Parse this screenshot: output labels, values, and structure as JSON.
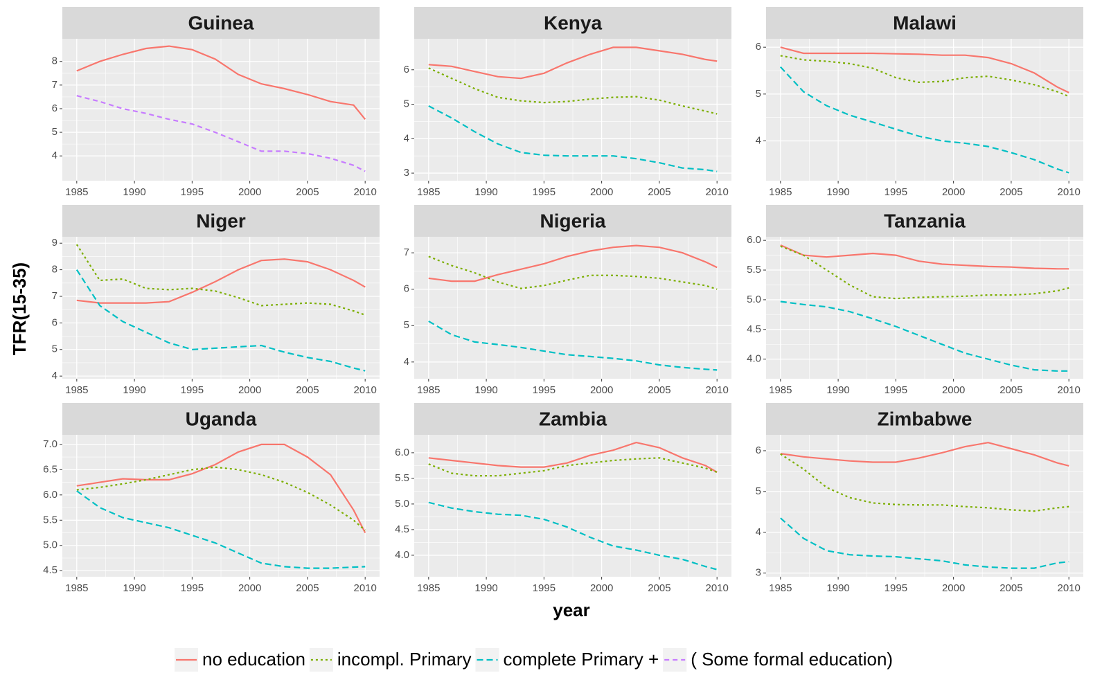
{
  "y_label": "TFR(15-35)",
  "x_label": "year",
  "chart_data": [
    {
      "type": "line",
      "title": "Guinea",
      "x": [
        1985,
        1987,
        1989,
        1991,
        1993,
        1995,
        1997,
        1999,
        2001,
        2003,
        2005,
        2007,
        2009,
        2010
      ],
      "series": [
        {
          "name": "no education",
          "color": "#F8766D",
          "linestyle": "solid",
          "values": [
            7.6,
            8.0,
            8.3,
            8.55,
            8.65,
            8.5,
            8.1,
            7.45,
            7.05,
            6.85,
            6.6,
            6.3,
            6.15,
            5.55
          ]
        },
        {
          "name": "( Some formal education)",
          "color": "#C77CFF",
          "linestyle": "longdash",
          "values": [
            6.55,
            6.3,
            6.0,
            5.8,
            5.55,
            5.35,
            5.0,
            4.6,
            4.2,
            4.2,
            4.1,
            3.9,
            3.6,
            3.35
          ]
        }
      ],
      "xlim": [
        1983.75,
        2011.25
      ],
      "xticks": [
        1985,
        1990,
        1995,
        2000,
        2005,
        2010
      ],
      "ylim": [
        2.95,
        8.96
      ],
      "yticks": [
        4,
        5,
        6,
        7,
        8
      ],
      "grid": true
    },
    {
      "type": "line",
      "title": "Kenya",
      "x": [
        1985,
        1987,
        1989,
        1991,
        1993,
        1995,
        1997,
        1999,
        2001,
        2003,
        2005,
        2007,
        2009,
        2010
      ],
      "series": [
        {
          "name": "no education",
          "color": "#F8766D",
          "linestyle": "solid",
          "values": [
            6.15,
            6.1,
            5.95,
            5.8,
            5.75,
            5.9,
            6.2,
            6.45,
            6.65,
            6.65,
            6.55,
            6.45,
            6.3,
            6.25
          ]
        },
        {
          "name": "incompl. Primary",
          "color": "#7CAE00",
          "linestyle": "dotted",
          "values": [
            6.05,
            5.75,
            5.45,
            5.2,
            5.1,
            5.05,
            5.08,
            5.15,
            5.2,
            5.22,
            5.12,
            4.95,
            4.8,
            4.72
          ]
        },
        {
          "name": "complete Primary +",
          "color": "#00BFC4",
          "linestyle": "dashed",
          "values": [
            4.95,
            4.6,
            4.2,
            3.85,
            3.6,
            3.52,
            3.5,
            3.5,
            3.5,
            3.42,
            3.3,
            3.15,
            3.1,
            3.05
          ]
        }
      ],
      "xlim": [
        1983.75,
        2011.25
      ],
      "xticks": [
        1985,
        1990,
        1995,
        2000,
        2005,
        2010
      ],
      "ylim": [
        2.78,
        6.9
      ],
      "yticks": [
        3,
        4,
        5,
        6
      ],
      "grid": true
    },
    {
      "type": "line",
      "title": "Malawi",
      "x": [
        1985,
        1987,
        1989,
        1991,
        1993,
        1995,
        1997,
        1999,
        2001,
        2003,
        2005,
        2007,
        2009,
        2010
      ],
      "series": [
        {
          "name": "no education",
          "color": "#F8766D",
          "linestyle": "solid",
          "values": [
            6.0,
            5.87,
            5.87,
            5.87,
            5.87,
            5.86,
            5.85,
            5.83,
            5.83,
            5.78,
            5.65,
            5.45,
            5.15,
            5.03
          ]
        },
        {
          "name": "incompl. Primary",
          "color": "#7CAE00",
          "linestyle": "dotted",
          "values": [
            5.82,
            5.73,
            5.7,
            5.65,
            5.55,
            5.35,
            5.25,
            5.27,
            5.35,
            5.38,
            5.3,
            5.2,
            5.05,
            4.95
          ]
        },
        {
          "name": "complete Primary +",
          "color": "#00BFC4",
          "linestyle": "dashed",
          "values": [
            5.58,
            5.05,
            4.75,
            4.55,
            4.4,
            4.25,
            4.1,
            4.0,
            3.95,
            3.88,
            3.75,
            3.6,
            3.4,
            3.32
          ]
        }
      ],
      "xlim": [
        1983.75,
        2011.25
      ],
      "xticks": [
        1985,
        1990,
        1995,
        2000,
        2005,
        2010
      ],
      "ylim": [
        3.15,
        6.18
      ],
      "yticks": [
        4,
        5,
        6
      ],
      "grid": true
    },
    {
      "type": "line",
      "title": "Niger",
      "x": [
        1985,
        1987,
        1989,
        1991,
        1993,
        1995,
        1997,
        1999,
        2001,
        2003,
        2005,
        2007,
        2009,
        2010
      ],
      "series": [
        {
          "name": "no education",
          "color": "#F8766D",
          "linestyle": "solid",
          "values": [
            6.85,
            6.75,
            6.75,
            6.75,
            6.8,
            7.15,
            7.55,
            8.0,
            8.35,
            8.4,
            8.3,
            8.0,
            7.6,
            7.35
          ]
        },
        {
          "name": "incompl. Primary",
          "color": "#7CAE00",
          "linestyle": "dotted",
          "values": [
            8.95,
            7.6,
            7.65,
            7.3,
            7.25,
            7.3,
            7.2,
            6.95,
            6.65,
            6.7,
            6.75,
            6.7,
            6.45,
            6.3
          ]
        },
        {
          "name": "complete Primary +",
          "color": "#00BFC4",
          "linestyle": "dashed",
          "values": [
            8.0,
            6.65,
            6.05,
            5.65,
            5.25,
            5.0,
            5.05,
            5.1,
            5.15,
            4.9,
            4.7,
            4.55,
            4.3,
            4.2
          ]
        }
      ],
      "xlim": [
        1983.75,
        2011.25
      ],
      "xticks": [
        1985,
        1990,
        1995,
        2000,
        2005,
        2010
      ],
      "ylim": [
        3.9,
        9.24
      ],
      "yticks": [
        4,
        5,
        6,
        7,
        8,
        9
      ],
      "grid": true
    },
    {
      "type": "line",
      "title": "Nigeria",
      "x": [
        1985,
        1987,
        1989,
        1991,
        1993,
        1995,
        1997,
        1999,
        2001,
        2003,
        2005,
        2007,
        2009,
        2010
      ],
      "series": [
        {
          "name": "no education",
          "color": "#F8766D",
          "linestyle": "solid",
          "values": [
            6.3,
            6.22,
            6.22,
            6.4,
            6.55,
            6.7,
            6.9,
            7.05,
            7.15,
            7.2,
            7.15,
            7.0,
            6.75,
            6.6
          ]
        },
        {
          "name": "incompl. Primary",
          "color": "#7CAE00",
          "linestyle": "dotted",
          "values": [
            6.9,
            6.65,
            6.45,
            6.2,
            6.02,
            6.1,
            6.25,
            6.38,
            6.38,
            6.35,
            6.3,
            6.2,
            6.1,
            6.0
          ]
        },
        {
          "name": "complete Primary +",
          "color": "#00BFC4",
          "linestyle": "dashed",
          "values": [
            5.12,
            4.75,
            4.55,
            4.48,
            4.4,
            4.3,
            4.2,
            4.15,
            4.1,
            4.03,
            3.92,
            3.85,
            3.8,
            3.78
          ]
        }
      ],
      "xlim": [
        1983.75,
        2011.25
      ],
      "xticks": [
        1985,
        1990,
        1995,
        2000,
        2005,
        2010
      ],
      "ylim": [
        3.54,
        7.44
      ],
      "yticks": [
        4,
        5,
        6,
        7
      ],
      "grid": true
    },
    {
      "type": "line",
      "title": "Tanzania",
      "x": [
        1985,
        1987,
        1989,
        1991,
        1993,
        1995,
        1997,
        1999,
        2001,
        2003,
        2005,
        2007,
        2009,
        2010
      ],
      "series": [
        {
          "name": "no education",
          "color": "#F8766D",
          "linestyle": "solid",
          "values": [
            5.92,
            5.75,
            5.72,
            5.75,
            5.78,
            5.75,
            5.65,
            5.6,
            5.58,
            5.56,
            5.55,
            5.53,
            5.52,
            5.52
          ]
        },
        {
          "name": "incompl. Primary",
          "color": "#7CAE00",
          "linestyle": "dotted",
          "values": [
            5.9,
            5.75,
            5.5,
            5.25,
            5.05,
            5.02,
            5.04,
            5.05,
            5.06,
            5.08,
            5.08,
            5.1,
            5.15,
            5.2
          ]
        },
        {
          "name": "complete Primary +",
          "color": "#00BFC4",
          "linestyle": "dashed",
          "values": [
            4.97,
            4.92,
            4.88,
            4.8,
            4.68,
            4.55,
            4.4,
            4.25,
            4.1,
            4.0,
            3.9,
            3.82,
            3.8,
            3.8
          ]
        }
      ],
      "xlim": [
        1983.75,
        2011.25
      ],
      "xticks": [
        1985,
        1990,
        1995,
        2000,
        2005,
        2010
      ],
      "ylim": [
        3.67,
        6.06
      ],
      "yticks": [
        {
          "value": 4,
          "label": "4.0"
        },
        4.5,
        {
          "value": 5,
          "label": "5.0"
        },
        5.5,
        {
          "value": 6,
          "label": "6.0"
        }
      ],
      "grid": true
    },
    {
      "type": "line",
      "title": "Uganda",
      "x": [
        1985,
        1987,
        1989,
        1991,
        1993,
        1995,
        1997,
        1999,
        2001,
        2003,
        2005,
        2007,
        2009,
        2010
      ],
      "series": [
        {
          "name": "no education",
          "color": "#F8766D",
          "linestyle": "solid",
          "values": [
            6.18,
            6.25,
            6.32,
            6.3,
            6.3,
            6.42,
            6.6,
            6.85,
            7.0,
            7.0,
            6.75,
            6.4,
            5.7,
            5.25
          ]
        },
        {
          "name": "incompl. Primary",
          "color": "#7CAE00",
          "linestyle": "dotted",
          "values": [
            6.1,
            6.15,
            6.22,
            6.3,
            6.4,
            6.5,
            6.55,
            6.5,
            6.4,
            6.25,
            6.05,
            5.8,
            5.5,
            5.3
          ]
        },
        {
          "name": "complete Primary +",
          "color": "#00BFC4",
          "linestyle": "dashed",
          "values": [
            6.08,
            5.75,
            5.55,
            5.45,
            5.35,
            5.2,
            5.05,
            4.85,
            4.65,
            4.58,
            4.55,
            4.55,
            4.57,
            4.58
          ]
        }
      ],
      "xlim": [
        1983.75,
        2011.25
      ],
      "xticks": [
        1985,
        1990,
        1995,
        2000,
        2005,
        2010
      ],
      "ylim": [
        4.38,
        7.19
      ],
      "yticks": [
        4.5,
        {
          "value": 5,
          "label": "5.0"
        },
        5.5,
        {
          "value": 6,
          "label": "6.0"
        },
        6.5,
        {
          "value": 7,
          "label": "7.0"
        }
      ],
      "grid": true
    },
    {
      "type": "line",
      "title": "Zambia",
      "x": [
        1985,
        1987,
        1989,
        1991,
        1993,
        1995,
        1997,
        1999,
        2001,
        2003,
        2005,
        2007,
        2009,
        2010
      ],
      "series": [
        {
          "name": "no education",
          "color": "#F8766D",
          "linestyle": "solid",
          "values": [
            5.9,
            5.85,
            5.8,
            5.75,
            5.72,
            5.72,
            5.8,
            5.95,
            6.05,
            6.2,
            6.1,
            5.9,
            5.75,
            5.62
          ]
        },
        {
          "name": "incompl. Primary",
          "color": "#7CAE00",
          "linestyle": "dotted",
          "values": [
            5.78,
            5.6,
            5.55,
            5.55,
            5.6,
            5.65,
            5.75,
            5.8,
            5.85,
            5.88,
            5.9,
            5.8,
            5.7,
            5.62
          ]
        },
        {
          "name": "complete Primary +",
          "color": "#00BFC4",
          "linestyle": "dashed",
          "values": [
            5.03,
            4.92,
            4.85,
            4.8,
            4.78,
            4.7,
            4.55,
            4.35,
            4.18,
            4.1,
            4.0,
            3.92,
            3.78,
            3.72
          ]
        }
      ],
      "xlim": [
        1983.75,
        2011.25
      ],
      "xticks": [
        1985,
        1990,
        1995,
        2000,
        2005,
        2010
      ],
      "ylim": [
        3.58,
        6.35
      ],
      "yticks": [
        {
          "value": 4,
          "label": "4.0"
        },
        4.5,
        {
          "value": 5,
          "label": "5.0"
        },
        5.5,
        {
          "value": 6,
          "label": "6.0"
        }
      ],
      "grid": true
    },
    {
      "type": "line",
      "title": "Zimbabwe",
      "x": [
        1985,
        1987,
        1989,
        1991,
        1993,
        1995,
        1997,
        1999,
        2001,
        2003,
        2005,
        2007,
        2009,
        2010
      ],
      "series": [
        {
          "name": "no education",
          "color": "#F8766D",
          "linestyle": "solid",
          "values": [
            5.93,
            5.85,
            5.8,
            5.75,
            5.72,
            5.72,
            5.82,
            5.95,
            6.1,
            6.2,
            6.05,
            5.9,
            5.7,
            5.63
          ]
        },
        {
          "name": "incompl. Primary",
          "color": "#7CAE00",
          "linestyle": "dotted",
          "values": [
            5.92,
            5.55,
            5.1,
            4.85,
            4.72,
            4.68,
            4.67,
            4.67,
            4.63,
            4.6,
            4.55,
            4.52,
            4.6,
            4.63
          ]
        },
        {
          "name": "complete Primary +",
          "color": "#00BFC4",
          "linestyle": "dashed",
          "values": [
            4.35,
            3.85,
            3.55,
            3.45,
            3.42,
            3.4,
            3.35,
            3.3,
            3.2,
            3.15,
            3.12,
            3.12,
            3.25,
            3.28
          ]
        }
      ],
      "xlim": [
        1983.75,
        2011.25
      ],
      "xticks": [
        1985,
        1990,
        1995,
        2000,
        2005,
        2010
      ],
      "ylim": [
        2.91,
        6.39
      ],
      "yticks": [
        3,
        4,
        5,
        6
      ],
      "grid": true
    }
  ]
}
